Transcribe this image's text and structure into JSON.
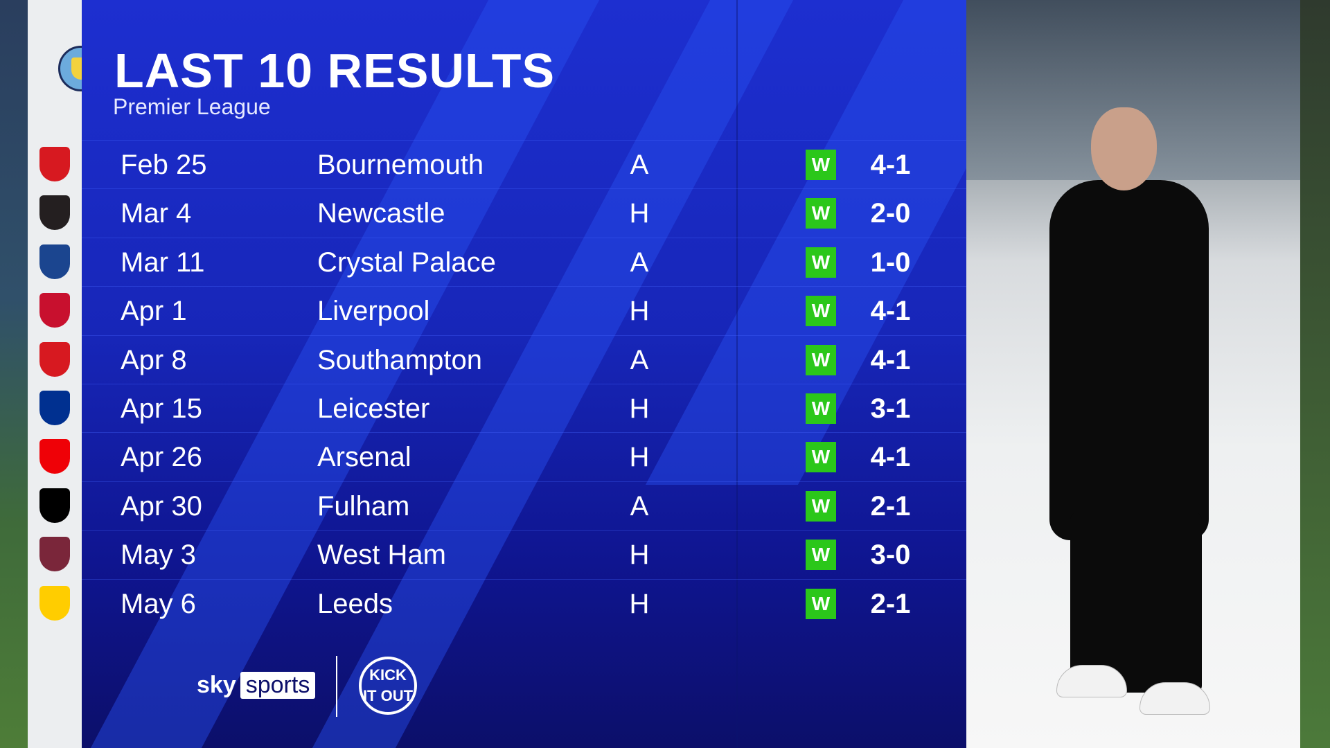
{
  "header": {
    "title": "LAST 10 RESULTS",
    "subtitle": "Premier League"
  },
  "team": {
    "crest": "manchester-city-crest"
  },
  "colors": {
    "panel": "#1726b8",
    "win": "#2bc71a",
    "text": "#ffffff"
  },
  "results": [
    {
      "date": "Feb 25",
      "opponent": "Bournemouth",
      "venue": "A",
      "result": "W",
      "score": "4-1",
      "crest_color": "#d71920"
    },
    {
      "date": "Mar 4",
      "opponent": "Newcastle",
      "venue": "H",
      "result": "W",
      "score": "2-0",
      "crest_color": "#241f20"
    },
    {
      "date": "Mar 11",
      "opponent": "Crystal Palace",
      "venue": "A",
      "result": "W",
      "score": "1-0",
      "crest_color": "#1b458f"
    },
    {
      "date": "Apr 1",
      "opponent": "Liverpool",
      "venue": "H",
      "result": "W",
      "score": "4-1",
      "crest_color": "#c8102e"
    },
    {
      "date": "Apr 8",
      "opponent": "Southampton",
      "venue": "A",
      "result": "W",
      "score": "4-1",
      "crest_color": "#d71920"
    },
    {
      "date": "Apr 15",
      "opponent": "Leicester",
      "venue": "H",
      "result": "W",
      "score": "3-1",
      "crest_color": "#003090"
    },
    {
      "date": "Apr 26",
      "opponent": "Arsenal",
      "venue": "H",
      "result": "W",
      "score": "4-1",
      "crest_color": "#ef0107"
    },
    {
      "date": "Apr 30",
      "opponent": "Fulham",
      "venue": "A",
      "result": "W",
      "score": "2-1",
      "crest_color": "#000000"
    },
    {
      "date": "May 3",
      "opponent": "West Ham",
      "venue": "H",
      "result": "W",
      "score": "3-0",
      "crest_color": "#7a263a"
    },
    {
      "date": "May 6",
      "opponent": "Leeds",
      "venue": "H",
      "result": "W",
      "score": "2-1",
      "crest_color": "#ffcd00"
    }
  ],
  "footer": {
    "brand_left": "sky",
    "brand_right": "sports",
    "partner_logo": "KICK IT OUT"
  }
}
